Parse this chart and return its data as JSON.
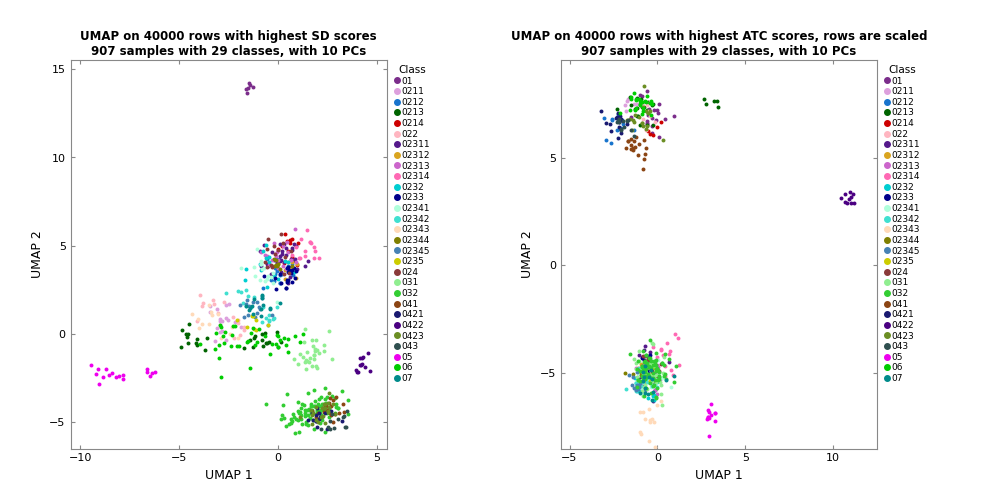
{
  "title1": "UMAP on 40000 rows with highest SD scores\n907 samples with 29 classes, with 10 PCs",
  "title2": "UMAP on 40000 rows with highest ATC scores, rows are scaled\n907 samples with 29 classes, with 10 PCs",
  "xlabel": "UMAP 1",
  "ylabel": "UMAP 2",
  "legend_title": "Class",
  "classes": [
    "01",
    "0211",
    "0212",
    "0213",
    "0214",
    "022",
    "02311",
    "02312",
    "02313",
    "02314",
    "0232",
    "0233",
    "02341",
    "02342",
    "02343",
    "02344",
    "02345",
    "0235",
    "024",
    "031",
    "032",
    "041",
    "0421",
    "0422",
    "0423",
    "043",
    "05",
    "06",
    "07"
  ],
  "colors": [
    "#7B2D8B",
    "#DDA0DD",
    "#1874CD",
    "#006400",
    "#CD0000",
    "#FFB6C1",
    "#551A8B",
    "#DAA520",
    "#CC66CC",
    "#FF69B4",
    "#00CED1",
    "#00008B",
    "#AFFFDB",
    "#40E0D0",
    "#FFDAB9",
    "#808000",
    "#4682B4",
    "#CDCD00",
    "#8B3A3A",
    "#90EE90",
    "#32CD32",
    "#8B4513",
    "#191970",
    "#4B0082",
    "#6B8E23",
    "#2F4F4F",
    "#EE00EE",
    "#00CD00",
    "#008B8B"
  ],
  "plot1_xlim": [
    -10.5,
    5.5
  ],
  "plot1_ylim": [
    -6.5,
    15.5
  ],
  "plot2_xlim": [
    -5.5,
    12.5
  ],
  "plot2_ylim": [
    -8.5,
    9.5
  ],
  "plot1_xticks": [
    -10,
    -5,
    0,
    5
  ],
  "plot1_yticks": [
    -5,
    0,
    5,
    10,
    15
  ],
  "plot2_xticks": [
    -5,
    0,
    5,
    10
  ],
  "plot2_yticks": [
    -5,
    0,
    5
  ]
}
